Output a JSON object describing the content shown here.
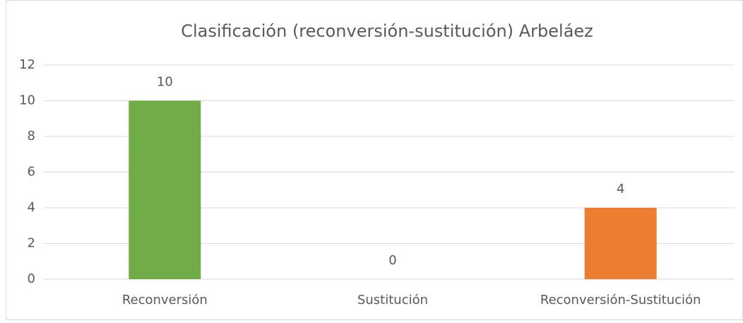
{
  "chart_data": {
    "type": "bar",
    "title": "Clasificación (reconversión-sustitución) Arbeláez",
    "categories": [
      "Reconversión",
      "Sustitución",
      "Reconversión-Sustitución"
    ],
    "values": [
      10,
      0,
      4
    ],
    "colors": [
      "#70ad47",
      null,
      "#ed7d31"
    ],
    "ylim": [
      0,
      12
    ],
    "yticks": [
      0,
      2,
      4,
      6,
      8,
      10,
      12
    ],
    "grid": true,
    "data_labels": true
  }
}
